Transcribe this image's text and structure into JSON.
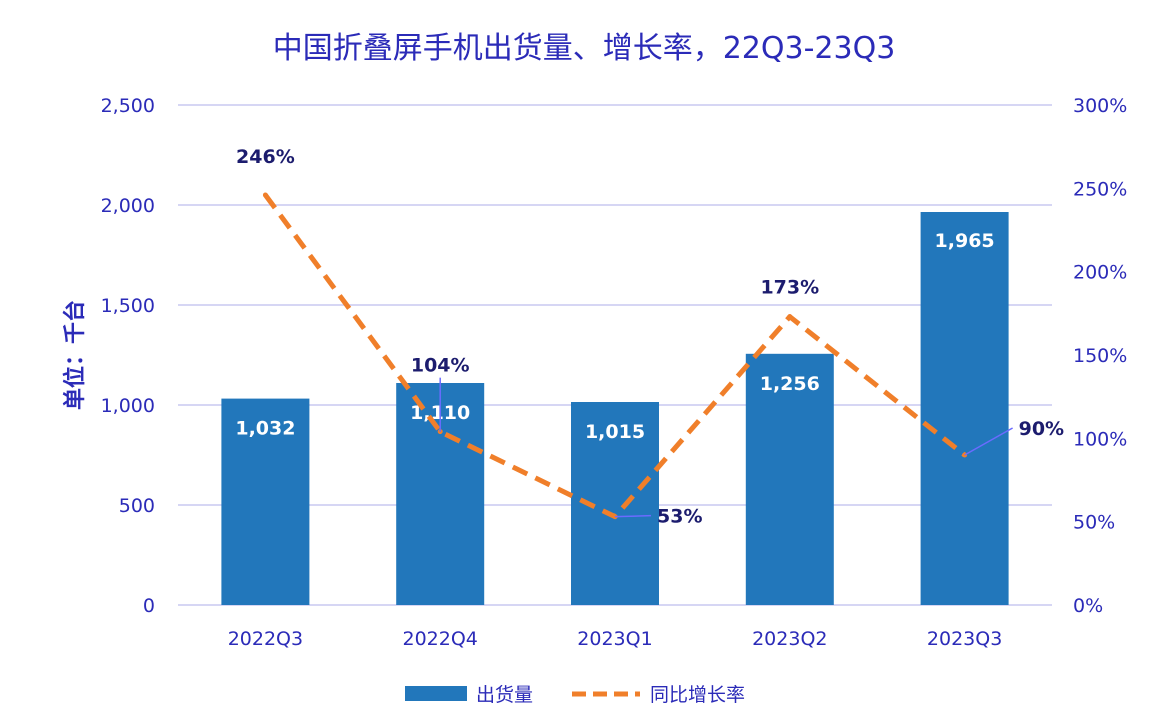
{
  "chart_data": {
    "type": "bar",
    "title": "中国折叠屏手机出货量、增长率，22Q3-23Q3",
    "ylabel": "单位：千台",
    "categories": [
      "2022Q3",
      "2022Q4",
      "2023Q1",
      "2023Q2",
      "2023Q3"
    ],
    "ylim": [
      0,
      2500
    ],
    "yticks": [
      0,
      500,
      1000,
      1500,
      2000,
      2500
    ],
    "ytick_labels": [
      "0",
      "500",
      "1,000",
      "1,500",
      "2,000",
      "2,500"
    ],
    "y2lim": [
      0,
      300
    ],
    "y2ticks": [
      0,
      50,
      100,
      150,
      200,
      250,
      300
    ],
    "y2tick_labels": [
      "0%",
      "50%",
      "100%",
      "150%",
      "200%",
      "250%",
      "300%"
    ],
    "grid": true,
    "legend_position": "bottom",
    "series": [
      {
        "name": "出货量",
        "type": "bar",
        "axis": "left",
        "color": "#2277bb",
        "values": [
          1032,
          1110,
          1015,
          1256,
          1965
        ],
        "labels": [
          "1,032",
          "1,110",
          "1,015",
          "1,256",
          "1,965"
        ]
      },
      {
        "name": "同比增长率",
        "type": "line",
        "style": "dashed",
        "axis": "right",
        "color": "#f07f2a",
        "values": [
          246,
          104,
          53,
          173,
          90
        ],
        "labels": [
          "246%",
          "104%",
          "53%",
          "173%",
          "90%"
        ]
      }
    ],
    "colors": {
      "axis_text": "#2b2bb8",
      "grid": "#c8c8f0",
      "leader": "#6b6bff",
      "rate_label": "#1c1c6e"
    }
  }
}
